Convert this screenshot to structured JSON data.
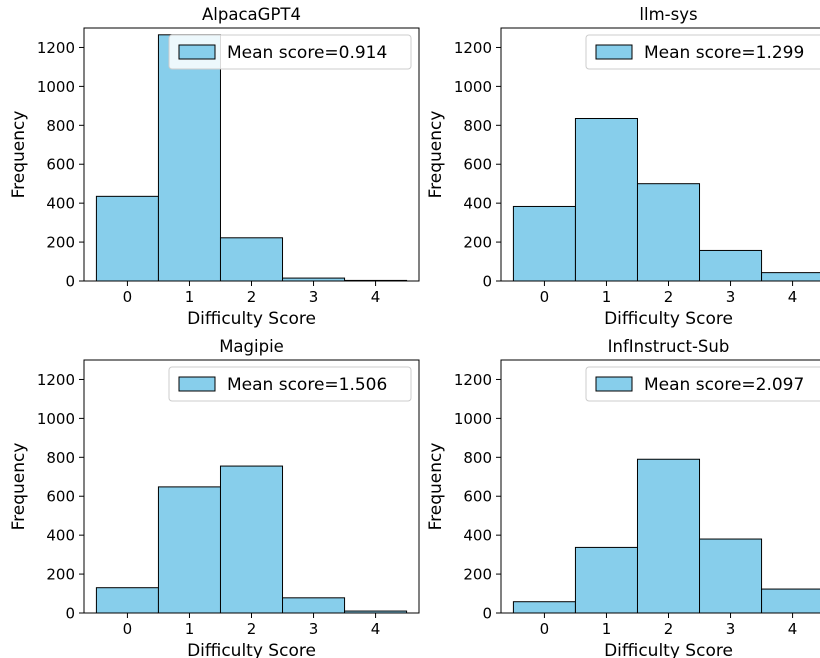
{
  "chart_data": [
    {
      "type": "bar",
      "title": "AlpacaGPT4",
      "xlabel": "Difficulty Score",
      "ylabel": "Frequency",
      "categories": [
        "0",
        "1",
        "2",
        "3",
        "4"
      ],
      "values": [
        435,
        1265,
        222,
        15,
        3
      ],
      "ylim": [
        0,
        1300
      ],
      "yticks": [
        "0",
        "200",
        "400",
        "600",
        "800",
        "1000",
        "1200"
      ],
      "legend": {
        "label": "Mean score=0.914",
        "placement": "top-right"
      },
      "color": "#87ceeb",
      "grid": false
    },
    {
      "type": "bar",
      "title": "llm-sys",
      "xlabel": "Difficulty Score",
      "ylabel": "Frequency",
      "categories": [
        "0",
        "1",
        "2",
        "3",
        "4"
      ],
      "values": [
        383,
        835,
        500,
        157,
        43
      ],
      "ylim": [
        0,
        1300
      ],
      "yticks": [
        "0",
        "200",
        "400",
        "600",
        "800",
        "1000",
        "1200"
      ],
      "legend": {
        "label": "Mean score=1.299",
        "placement": "top-right"
      },
      "color": "#87ceeb",
      "grid": false
    },
    {
      "type": "bar",
      "title": "Magipie",
      "xlabel": "Difficulty Score",
      "ylabel": "Frequency",
      "categories": [
        "0",
        "1",
        "2",
        "3",
        "4"
      ],
      "values": [
        130,
        648,
        755,
        78,
        10
      ],
      "ylim": [
        0,
        1300
      ],
      "yticks": [
        "0",
        "200",
        "400",
        "600",
        "800",
        "1000",
        "1200"
      ],
      "legend": {
        "label": "Mean score=1.506",
        "placement": "top-right"
      },
      "color": "#87ceeb",
      "grid": false
    },
    {
      "type": "bar",
      "title": "InfInstruct-Sub",
      "xlabel": "Difficulty Score",
      "ylabel": "Frequency",
      "categories": [
        "0",
        "1",
        "2",
        "3",
        "4"
      ],
      "values": [
        58,
        337,
        790,
        380,
        123
      ],
      "ylim": [
        0,
        1300
      ],
      "yticks": [
        "0",
        "200",
        "400",
        "600",
        "800",
        "1000",
        "1200"
      ],
      "legend": {
        "label": "Mean score=2.097",
        "placement": "top-right"
      },
      "color": "#87ceeb",
      "grid": false
    }
  ]
}
